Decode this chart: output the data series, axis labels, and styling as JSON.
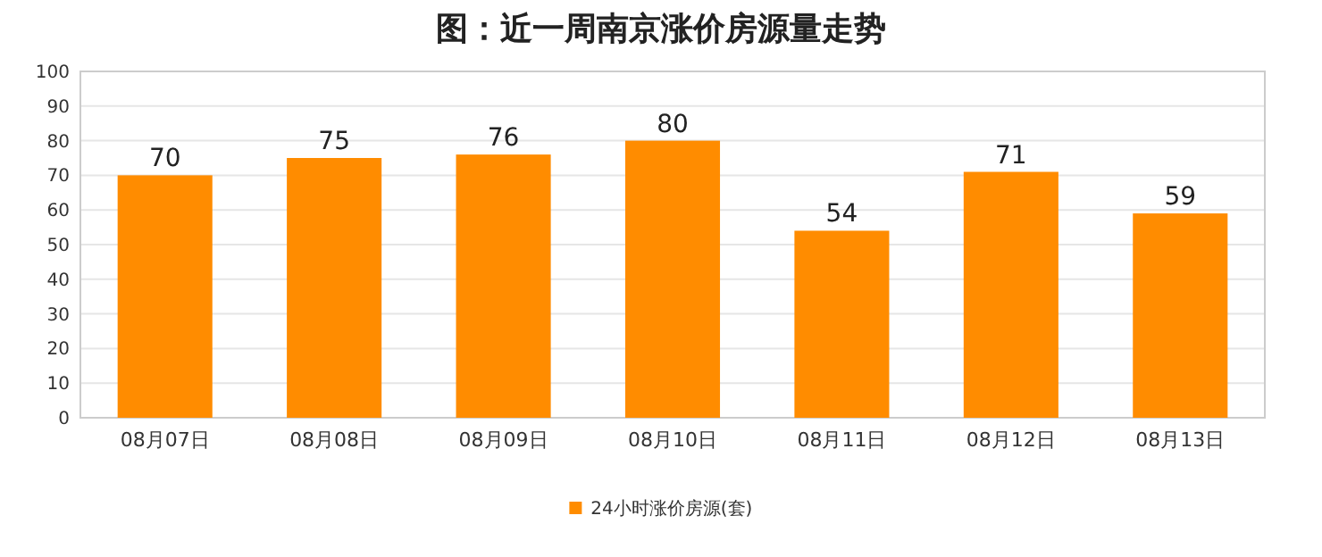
{
  "chart_data": {
    "type": "bar",
    "title": "图：近一周南京涨价房源量走势",
    "categories": [
      "08月07日",
      "08月08日",
      "08月09日",
      "08月10日",
      "08月11日",
      "08月12日",
      "08月13日"
    ],
    "series": [
      {
        "name": "24小时涨价房源(套)",
        "color": "#ff8c00",
        "values": [
          70,
          75,
          76,
          80,
          54,
          71,
          59
        ]
      }
    ],
    "ylim": [
      0,
      100
    ],
    "yticks": [
      0,
      10,
      20,
      30,
      40,
      50,
      60,
      70,
      80,
      90,
      100
    ],
    "grid": "y",
    "legend": "bottom",
    "data_labels": true
  }
}
